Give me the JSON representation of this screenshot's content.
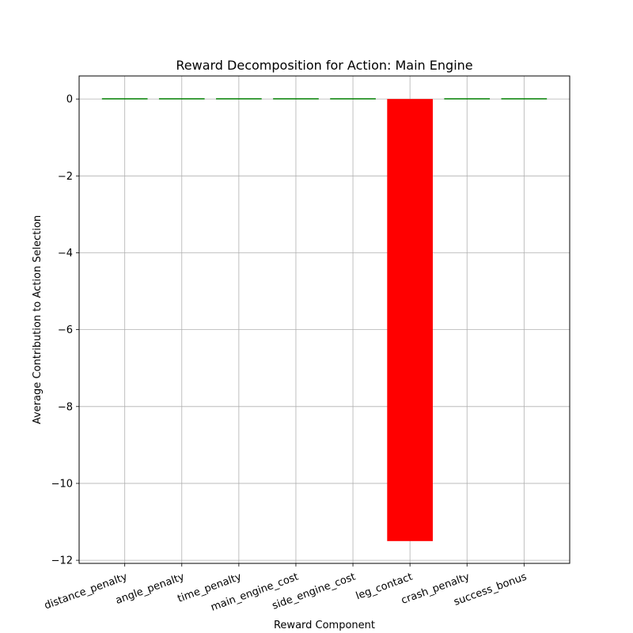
{
  "chart_data": {
    "type": "bar",
    "title": "Reward Decomposition for Action: Main Engine",
    "xlabel": "Reward Component",
    "ylabel": "Average Contribution to Action Selection",
    "categories": [
      "distance_penalty",
      "angle_penalty",
      "time_penalty",
      "main_engine_cost",
      "side_engine_cost",
      "leg_contact",
      "crash_penalty",
      "success_bonus"
    ],
    "values": [
      0,
      0,
      0,
      0,
      0.01,
      -11.5,
      0,
      0
    ],
    "bar_colors": [
      "#008000",
      "#008000",
      "#008000",
      "#008000",
      "#008000",
      "#ff0000",
      "#008000",
      "#008000"
    ],
    "ylim": [
      -12.08,
      0.6
    ],
    "yticks": [
      0,
      -2,
      -4,
      -6,
      -8,
      -10,
      -12
    ],
    "ytick_labels": [
      "0",
      "−2",
      "−4",
      "−6",
      "−8",
      "−10",
      "−12"
    ],
    "grid": true,
    "legend": "none"
  }
}
